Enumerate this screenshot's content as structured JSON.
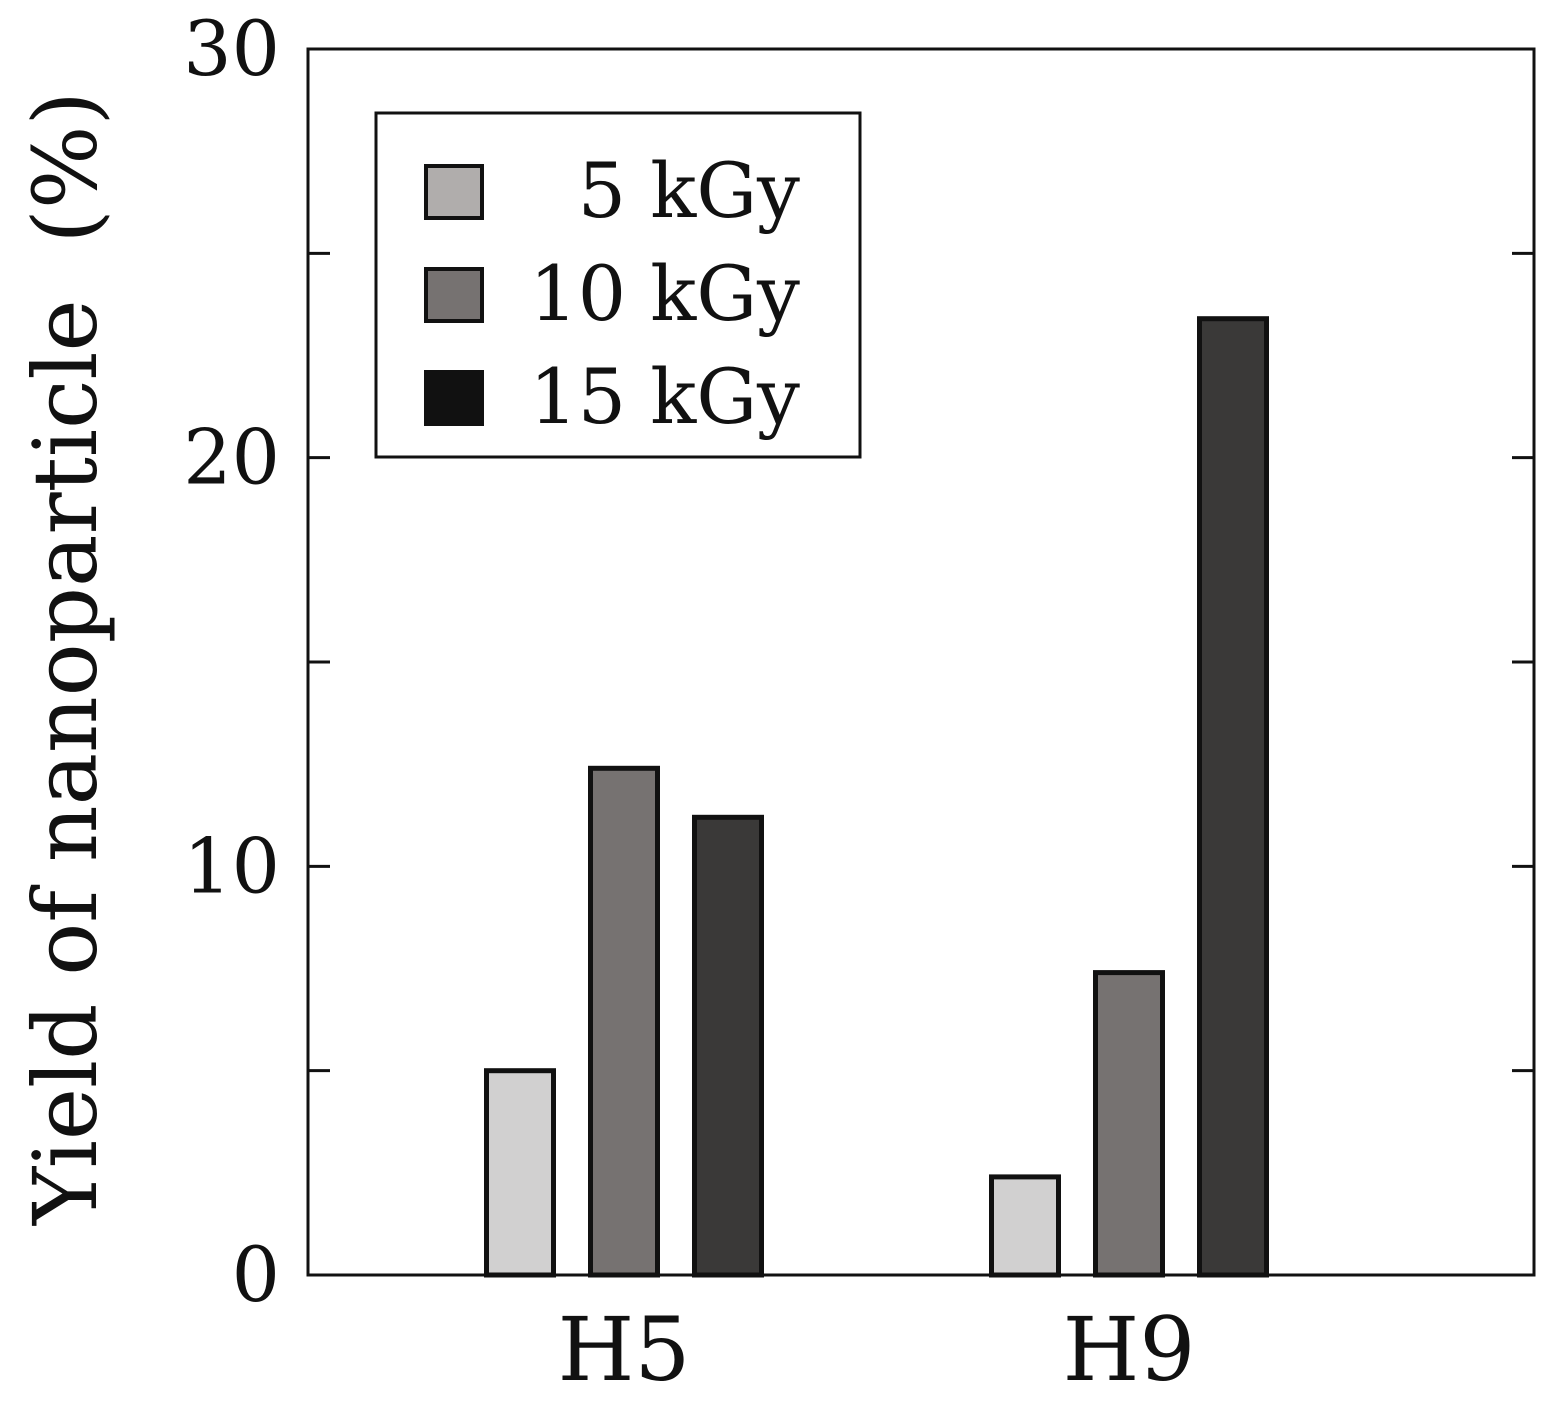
{
  "chart_data": {
    "type": "bar",
    "title": "",
    "xlabel": "",
    "ylabel": "Yield of nanoparticle  (%)",
    "categories": [
      "H5",
      "H9"
    ],
    "series": [
      {
        "name": "5 kGy",
        "values": [
          5.0,
          2.4
        ],
        "color": "#d1d0d0"
      },
      {
        "name": "10 kGy",
        "values": [
          12.4,
          7.4
        ],
        "color": "#767271"
      },
      {
        "name": "15 kGy",
        "values": [
          11.2,
          23.4
        ],
        "color": "#3a3938"
      }
    ],
    "legend_swatch_colors": [
      "#b0adac",
      "#767271",
      "#111111"
    ],
    "ylim": [
      0,
      30
    ],
    "yticks_major": [
      0,
      10,
      20,
      30
    ],
    "yticks_minor": [
      5,
      15,
      25
    ],
    "grid": false,
    "legend_position": "top-left"
  }
}
